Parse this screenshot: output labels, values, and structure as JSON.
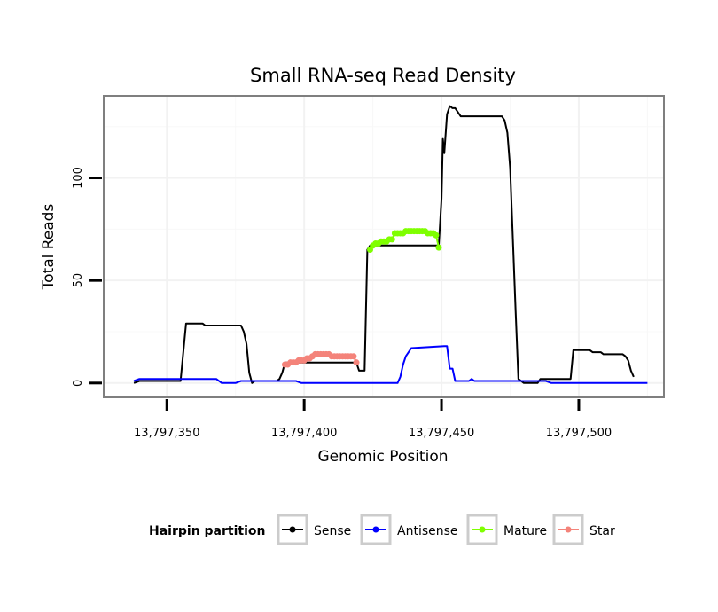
{
  "chart_data": {
    "type": "line",
    "title": "Small RNA-seq Read Density",
    "xlabel": "Genomic Position",
    "ylabel": "Total Reads",
    "xlim": [
      13797327,
      13797531
    ],
    "ylim": [
      -7,
      140
    ],
    "x_ticks": [
      13797350,
      13797400,
      13797450,
      13797500
    ],
    "x_tick_labels": [
      "13,797,350",
      "13,797,400",
      "13,797,450",
      "13,797,500"
    ],
    "y_ticks": [
      0,
      50,
      100
    ],
    "y_tick_labels": [
      "0",
      "50",
      "100"
    ],
    "grid": true,
    "legend": {
      "title": "Hairpin partition",
      "position": "bottom",
      "entries": [
        {
          "name": "Sense",
          "color": "#000000"
        },
        {
          "name": "Antisense",
          "color": "#0000ff"
        },
        {
          "name": "Mature",
          "color": "#7fff00"
        },
        {
          "name": "Star",
          "color": "#f4837a"
        }
      ]
    },
    "series": [
      {
        "name": "Sense",
        "color": "#000000",
        "style": "line",
        "x": [
          13797338,
          13797340,
          13797355,
          13797357,
          13797363,
          13797364,
          13797377,
          13797378,
          13797379,
          13797380,
          13797381,
          13797382,
          13797390,
          13797391,
          13797392,
          13797393,
          13797419,
          13797420,
          13797422,
          13797423,
          13797424,
          13797449,
          13797450,
          13797450.5,
          13797451,
          13797452,
          13797453,
          13797454,
          13797455,
          13797457,
          13797459,
          13797460,
          13797472,
          13797473,
          13797474,
          13797475,
          13797476,
          13797477,
          13797478,
          13797480,
          13797482,
          13797485,
          13797486,
          13797488,
          13797497,
          13797498,
          13797504,
          13797505,
          13797508,
          13797509,
          13797516,
          13797517,
          13797518,
          13797519,
          13797520
        ],
        "y": [
          0,
          1,
          1,
          29,
          29,
          28,
          28,
          25,
          19,
          5,
          0,
          1,
          1,
          2,
          5,
          10,
          10,
          6,
          6,
          65,
          67,
          67,
          90,
          119,
          112,
          131,
          135,
          134,
          134,
          130,
          130,
          130,
          130,
          128,
          122,
          105,
          70,
          35,
          2,
          0,
          0,
          0,
          2,
          2,
          2,
          16,
          16,
          15,
          15,
          14,
          14,
          13,
          11,
          6,
          3
        ]
      },
      {
        "name": "Antisense",
        "color": "#0000ff",
        "style": "line",
        "x": [
          13797338,
          13797340,
          13797368,
          13797370,
          13797375,
          13797377,
          13797397,
          13797399,
          13797408,
          13797434,
          13797435,
          13797436,
          13797437,
          13797439,
          13797451,
          13797452,
          13797453,
          13797454,
          13797455,
          13797460,
          13797461,
          13797462,
          13797466,
          13797488,
          13797490,
          13797525
        ],
        "y": [
          1,
          2,
          2,
          0,
          0,
          1,
          1,
          0,
          0,
          0,
          3,
          9,
          13,
          17,
          18,
          18,
          7,
          7,
          1,
          1,
          2,
          1,
          1,
          1,
          0,
          0
        ]
      },
      {
        "name": "Mature",
        "color": "#7fff00",
        "style": "points",
        "x": [
          13797424,
          13797425,
          13797426,
          13797427,
          13797428,
          13797429,
          13797430,
          13797431,
          13797432,
          13797433,
          13797434,
          13797435,
          13797436,
          13797437,
          13797438,
          13797439,
          13797440,
          13797441,
          13797442,
          13797443,
          13797444,
          13797445,
          13797446,
          13797447,
          13797448,
          13797449
        ],
        "y": [
          65,
          67,
          68,
          68,
          69,
          69,
          69,
          70,
          70,
          73,
          73,
          73,
          73,
          74,
          74,
          74,
          74,
          74,
          74,
          74,
          74,
          73,
          73,
          73,
          72,
          66
        ]
      },
      {
        "name": "Star",
        "color": "#f4837a",
        "style": "points",
        "x": [
          13797393,
          13797394,
          13797395,
          13797396,
          13797397,
          13797398,
          13797399,
          13797400,
          13797401,
          13797402,
          13797403,
          13797404,
          13797405,
          13797406,
          13797407,
          13797408,
          13797409,
          13797410,
          13797411,
          13797412,
          13797413,
          13797414,
          13797415,
          13797416,
          13797417,
          13797418,
          13797419
        ],
        "y": [
          9,
          9,
          10,
          10,
          10,
          11,
          11,
          11,
          12,
          12,
          13,
          14,
          14,
          14,
          14,
          14,
          14,
          13,
          13,
          13,
          13,
          13,
          13,
          13,
          13,
          13,
          10
        ]
      }
    ]
  }
}
